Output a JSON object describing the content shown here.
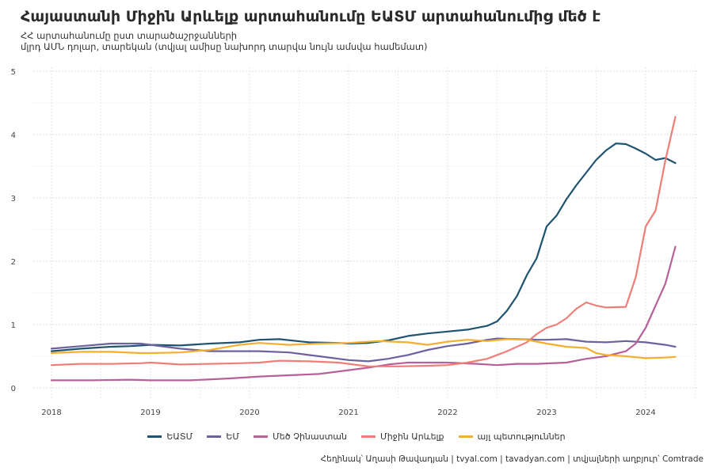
{
  "title": "Հայաստանի Միջին Արևելք արտահանումը ԵԱՏՄ արտահանումից մեծ է",
  "subtitle_line1": "ՀՀ արտահանումը ըստ տարածաշրջանների",
  "subtitle_line2": "մլրդ ԱՄՆ դոլար, տարեկան (տվյալ ամիսը նախորդ տարվա նույն ամսվա համեմատ)",
  "caption": "Հեղինակ՝ Աղասի Թավադյան   |   tvyal.com   |   tavadyan.com   |   տվյալների աղբյուր՝ Comtrade",
  "chart_data": {
    "type": "line",
    "x_axis": "time",
    "x_ticks": [
      "2018",
      "2019",
      "2020",
      "2021",
      "2022",
      "2023",
      "2024"
    ],
    "y_ticks": [
      "0",
      "1",
      "2",
      "3",
      "4",
      "5"
    ],
    "ylim": [
      0,
      5
    ],
    "grid": true,
    "legend_position": "bottom",
    "series": [
      {
        "name": "ԵԱՏՄ",
        "color": "#1f5470",
        "points": [
          [
            2018.0,
            0.58
          ],
          [
            2018.3,
            0.62
          ],
          [
            2018.6,
            0.65
          ],
          [
            2018.8,
            0.66
          ],
          [
            2019.0,
            0.68
          ],
          [
            2019.3,
            0.67
          ],
          [
            2019.6,
            0.7
          ],
          [
            2019.9,
            0.72
          ],
          [
            2020.1,
            0.76
          ],
          [
            2020.3,
            0.77
          ],
          [
            2020.6,
            0.72
          ],
          [
            2020.9,
            0.71
          ],
          [
            2021.0,
            0.7
          ],
          [
            2021.2,
            0.71
          ],
          [
            2021.4,
            0.75
          ],
          [
            2021.6,
            0.82
          ],
          [
            2021.8,
            0.86
          ],
          [
            2022.0,
            0.89
          ],
          [
            2022.2,
            0.92
          ],
          [
            2022.4,
            0.98
          ],
          [
            2022.5,
            1.05
          ],
          [
            2022.6,
            1.22
          ],
          [
            2022.7,
            1.45
          ],
          [
            2022.8,
            1.78
          ],
          [
            2022.9,
            2.05
          ],
          [
            2023.0,
            2.55
          ],
          [
            2023.1,
            2.72
          ],
          [
            2023.2,
            2.98
          ],
          [
            2023.3,
            3.2
          ],
          [
            2023.4,
            3.4
          ],
          [
            2023.5,
            3.6
          ],
          [
            2023.6,
            3.75
          ],
          [
            2023.7,
            3.86
          ],
          [
            2023.8,
            3.85
          ],
          [
            2023.9,
            3.78
          ],
          [
            2024.0,
            3.7
          ],
          [
            2024.1,
            3.6
          ],
          [
            2024.2,
            3.63
          ],
          [
            2024.3,
            3.55
          ]
        ]
      },
      {
        "name": "ԵՄ",
        "color": "#6b62a0",
        "points": [
          [
            2018.0,
            0.62
          ],
          [
            2018.3,
            0.66
          ],
          [
            2018.6,
            0.7
          ],
          [
            2018.9,
            0.7
          ],
          [
            2019.0,
            0.68
          ],
          [
            2019.3,
            0.62
          ],
          [
            2019.6,
            0.58
          ],
          [
            2019.9,
            0.58
          ],
          [
            2020.1,
            0.58
          ],
          [
            2020.4,
            0.56
          ],
          [
            2020.7,
            0.5
          ],
          [
            2021.0,
            0.44
          ],
          [
            2021.2,
            0.42
          ],
          [
            2021.4,
            0.46
          ],
          [
            2021.6,
            0.52
          ],
          [
            2021.8,
            0.6
          ],
          [
            2022.0,
            0.66
          ],
          [
            2022.2,
            0.7
          ],
          [
            2022.4,
            0.76
          ],
          [
            2022.5,
            0.78
          ],
          [
            2022.7,
            0.77
          ],
          [
            2022.9,
            0.76
          ],
          [
            2023.0,
            0.76
          ],
          [
            2023.2,
            0.77
          ],
          [
            2023.4,
            0.73
          ],
          [
            2023.6,
            0.72
          ],
          [
            2023.8,
            0.74
          ],
          [
            2024.0,
            0.72
          ],
          [
            2024.2,
            0.68
          ],
          [
            2024.3,
            0.65
          ]
        ]
      },
      {
        "name": "Մեծ Չինաստան",
        "color": "#b8609a",
        "points": [
          [
            2018.0,
            0.12
          ],
          [
            2018.4,
            0.12
          ],
          [
            2018.8,
            0.13
          ],
          [
            2019.0,
            0.12
          ],
          [
            2019.4,
            0.12
          ],
          [
            2019.8,
            0.15
          ],
          [
            2020.1,
            0.18
          ],
          [
            2020.4,
            0.2
          ],
          [
            2020.7,
            0.22
          ],
          [
            2021.0,
            0.28
          ],
          [
            2021.2,
            0.32
          ],
          [
            2021.4,
            0.37
          ],
          [
            2021.6,
            0.4
          ],
          [
            2021.8,
            0.4
          ],
          [
            2022.0,
            0.4
          ],
          [
            2022.3,
            0.38
          ],
          [
            2022.5,
            0.36
          ],
          [
            2022.7,
            0.38
          ],
          [
            2022.9,
            0.38
          ],
          [
            2023.2,
            0.4
          ],
          [
            2023.4,
            0.46
          ],
          [
            2023.6,
            0.5
          ],
          [
            2023.8,
            0.58
          ],
          [
            2023.9,
            0.7
          ],
          [
            2024.0,
            0.95
          ],
          [
            2024.1,
            1.3
          ],
          [
            2024.2,
            1.65
          ],
          [
            2024.3,
            2.23
          ]
        ]
      },
      {
        "name": "Միջին Արևելք",
        "color": "#f07e78",
        "points": [
          [
            2018.0,
            0.36
          ],
          [
            2018.3,
            0.38
          ],
          [
            2018.6,
            0.38
          ],
          [
            2018.9,
            0.39
          ],
          [
            2019.0,
            0.4
          ],
          [
            2019.3,
            0.37
          ],
          [
            2019.6,
            0.38
          ],
          [
            2019.9,
            0.39
          ],
          [
            2020.1,
            0.4
          ],
          [
            2020.3,
            0.43
          ],
          [
            2020.6,
            0.42
          ],
          [
            2020.9,
            0.4
          ],
          [
            2021.0,
            0.38
          ],
          [
            2021.2,
            0.34
          ],
          [
            2021.5,
            0.34
          ],
          [
            2021.8,
            0.35
          ],
          [
            2022.0,
            0.36
          ],
          [
            2022.2,
            0.4
          ],
          [
            2022.4,
            0.46
          ],
          [
            2022.6,
            0.58
          ],
          [
            2022.8,
            0.72
          ],
          [
            2022.9,
            0.85
          ],
          [
            2023.0,
            0.95
          ],
          [
            2023.1,
            1.0
          ],
          [
            2023.2,
            1.1
          ],
          [
            2023.3,
            1.25
          ],
          [
            2023.4,
            1.35
          ],
          [
            2023.5,
            1.3
          ],
          [
            2023.6,
            1.27
          ],
          [
            2023.8,
            1.28
          ],
          [
            2023.9,
            1.75
          ],
          [
            2024.0,
            2.55
          ],
          [
            2024.1,
            2.8
          ],
          [
            2024.2,
            3.6
          ],
          [
            2024.3,
            4.28
          ]
        ]
      },
      {
        "name": "այլ պետություններ",
        "color": "#f5ae2d",
        "points": [
          [
            2018.0,
            0.55
          ],
          [
            2018.3,
            0.57
          ],
          [
            2018.6,
            0.57
          ],
          [
            2018.9,
            0.55
          ],
          [
            2019.0,
            0.55
          ],
          [
            2019.3,
            0.56
          ],
          [
            2019.6,
            0.6
          ],
          [
            2019.9,
            0.68
          ],
          [
            2020.1,
            0.71
          ],
          [
            2020.4,
            0.68
          ],
          [
            2020.7,
            0.7
          ],
          [
            2021.0,
            0.71
          ],
          [
            2021.3,
            0.74
          ],
          [
            2021.6,
            0.72
          ],
          [
            2021.8,
            0.68
          ],
          [
            2022.0,
            0.73
          ],
          [
            2022.2,
            0.76
          ],
          [
            2022.4,
            0.74
          ],
          [
            2022.6,
            0.77
          ],
          [
            2022.8,
            0.76
          ],
          [
            2023.0,
            0.7
          ],
          [
            2023.2,
            0.65
          ],
          [
            2023.4,
            0.63
          ],
          [
            2023.5,
            0.55
          ],
          [
            2023.6,
            0.52
          ],
          [
            2023.8,
            0.5
          ],
          [
            2024.0,
            0.47
          ],
          [
            2024.2,
            0.48
          ],
          [
            2024.3,
            0.49
          ]
        ]
      }
    ]
  }
}
